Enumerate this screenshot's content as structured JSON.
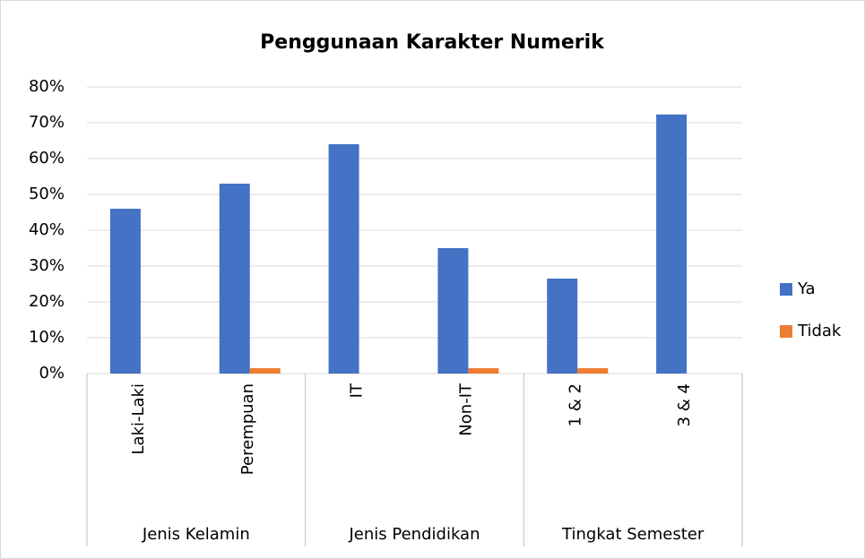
{
  "chart_data": {
    "type": "bar",
    "title": "Penggunaan Karakter Numerik",
    "category_groups": [
      {
        "name": "Jenis Kelamin",
        "categories": [
          "Laki-Laki",
          "Perempuan"
        ]
      },
      {
        "name": "Jenis Pendidikan",
        "categories": [
          "IT",
          "Non-IT"
        ]
      },
      {
        "name": "Tingkat Semester",
        "categories": [
          "1 & 2",
          "3 & 4"
        ]
      }
    ],
    "series": [
      {
        "name": "Ya",
        "color": "#4472c4",
        "values": [
          46,
          53,
          64,
          35,
          26.5,
          72.3
        ]
      },
      {
        "name": "Tidak",
        "color": "#ed7d31",
        "values": [
          0,
          1.5,
          0,
          1.5,
          1.5,
          0
        ]
      }
    ],
    "ylim": [
      0,
      80
    ],
    "yticks": [
      {
        "value": 0,
        "label": "0%"
      },
      {
        "value": 10,
        "label": "10%"
      },
      {
        "value": 20,
        "label": "20%"
      },
      {
        "value": 30,
        "label": "30%"
      },
      {
        "value": 40,
        "label": "40%"
      },
      {
        "value": 50,
        "label": "50%"
      },
      {
        "value": 60,
        "label": "60%"
      },
      {
        "value": 70,
        "label": "70%"
      },
      {
        "value": 80,
        "label": "80%"
      }
    ],
    "grid": true,
    "legend": "right"
  }
}
